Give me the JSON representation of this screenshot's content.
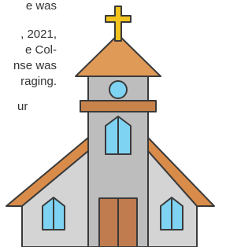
{
  "text_lines": [
    "e was",
    ", 2021,",
    "e Col-",
    "nse was",
    "raging.",
    "ur"
  ]
}
